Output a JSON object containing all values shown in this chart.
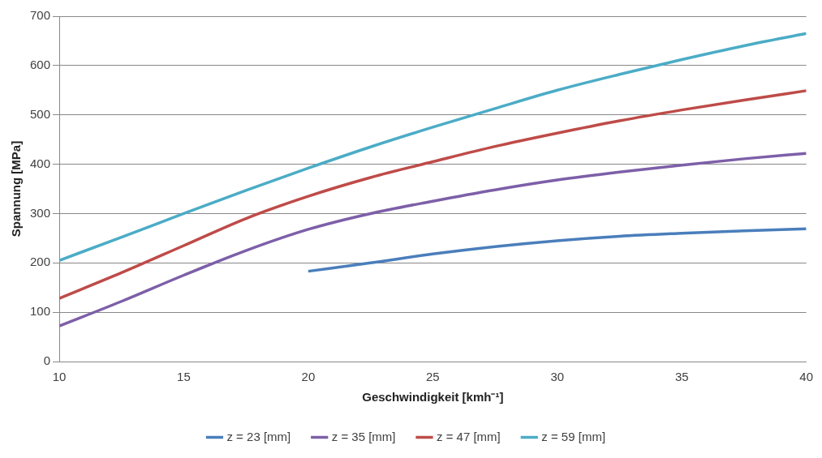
{
  "chart_data": {
    "type": "line",
    "xlabel": "Geschwindigkeit [kmh⁻¹]",
    "ylabel": "Spannung [MPa]",
    "xlim": [
      10,
      40
    ],
    "xticks": [
      10,
      15,
      20,
      25,
      30,
      35,
      40
    ],
    "ylim": [
      0,
      700
    ],
    "yticks": [
      0,
      100,
      200,
      300,
      400,
      500,
      600,
      700
    ],
    "grid": "y",
    "legend": "bottom",
    "marker": "none",
    "line_style": "solid",
    "series": [
      {
        "name": "z = 23 [mm]",
        "color": "#4a7ebb",
        "x": [
          20,
          22.5,
          25,
          27.5,
          30,
          32.5,
          35,
          37.5,
          40
        ],
        "values": [
          183,
          200,
          218,
          233,
          245,
          254,
          260,
          265,
          269
        ]
      },
      {
        "name": "z = 35 [mm]",
        "color": "#7d5fa8",
        "x": [
          10,
          12.5,
          15,
          17.5,
          20,
          22.5,
          25,
          27.5,
          30,
          32.5,
          35,
          37.5,
          40
        ],
        "values": [
          72,
          122,
          175,
          225,
          268,
          300,
          325,
          348,
          368,
          384,
          398,
          411,
          422
        ]
      },
      {
        "name": "z = 47 [mm]",
        "color": "#be4b48",
        "x": [
          10,
          12.5,
          15,
          17.5,
          20,
          22.5,
          25,
          27.5,
          30,
          32.5,
          35,
          37.5,
          40
        ],
        "values": [
          128,
          180,
          235,
          290,
          335,
          373,
          405,
          436,
          463,
          488,
          510,
          530,
          549
        ]
      },
      {
        "name": "z = 59 [mm]",
        "color": "#4bacc6",
        "x": [
          10,
          12.5,
          15,
          17.5,
          20,
          22.5,
          25,
          27.5,
          30,
          32.5,
          35,
          37.5,
          40
        ],
        "values": [
          205,
          252,
          300,
          347,
          392,
          435,
          475,
          513,
          550,
          582,
          612,
          640,
          665
        ]
      }
    ]
  }
}
